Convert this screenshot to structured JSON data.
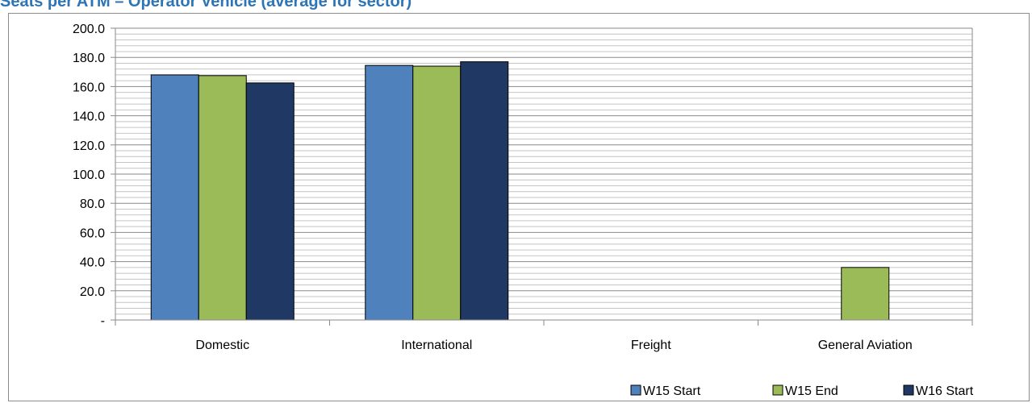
{
  "page": {
    "title": "Seats per ATM – Operator Vehicle (average for sector)"
  },
  "chart_data": {
    "type": "bar",
    "title": "Seats per ATM – Operator Vehicle (average for sector)",
    "categories": [
      "Domestic",
      "International",
      "Freight",
      "General Aviation"
    ],
    "series": [
      {
        "name": "W15 Start",
        "color": "#4F81BD",
        "values": [
          168.0,
          174.5,
          0,
          0
        ]
      },
      {
        "name": "W15 End",
        "color": "#9BBB59",
        "values": [
          167.5,
          174.0,
          0,
          36.0
        ]
      },
      {
        "name": "W16 Start",
        "color": "#1F3864",
        "values": [
          162.5,
          177.0,
          0,
          0
        ]
      }
    ],
    "ylim": [
      0,
      200
    ],
    "y_ticks": [
      {
        "value": 0,
        "label": "-"
      },
      {
        "value": 20,
        "label": "20.0"
      },
      {
        "value": 40,
        "label": "40.0"
      },
      {
        "value": 60,
        "label": "60.0"
      },
      {
        "value": 80,
        "label": "80.0"
      },
      {
        "value": 100,
        "label": "100.0"
      },
      {
        "value": 120,
        "label": "120.0"
      },
      {
        "value": 140,
        "label": "140.0"
      },
      {
        "value": 160,
        "label": "160.0"
      },
      {
        "value": 180,
        "label": "180.0"
      },
      {
        "value": 200,
        "label": "200.0"
      }
    ],
    "minor_grid_step": 4,
    "grid": true,
    "legend_position": "bottom-right",
    "xlabel": "",
    "ylabel": ""
  }
}
